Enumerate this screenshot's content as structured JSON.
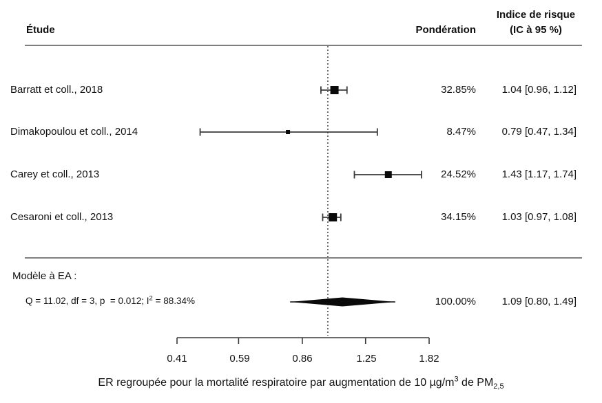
{
  "header": {
    "study_col": "Étude",
    "weight_col": "Pondération",
    "effect_col_line1": "Indice de risque",
    "effect_col_line2": "(IC à 95 %)"
  },
  "chart_data": {
    "type": "forest",
    "x_axis": {
      "scale": "log",
      "ticks": [
        0.41,
        0.59,
        0.86,
        1.25,
        1.82
      ],
      "tick_labels": [
        "0.41",
        "0.59",
        "0.86",
        "1.25",
        "1.82"
      ],
      "reference_line": 1.0
    },
    "studies": [
      {
        "label": "Barratt et coll., 2018",
        "weight_pct": 32.85,
        "weight_label": "32.85%",
        "estimate": 1.04,
        "ci_low": 0.96,
        "ci_high": 1.12,
        "effect_label": "1.04 [0.96, 1.12]"
      },
      {
        "label": "Dimakopoulou et coll., 2014",
        "weight_pct": 8.47,
        "weight_label": "8.47%",
        "estimate": 0.79,
        "ci_low": 0.47,
        "ci_high": 1.34,
        "effect_label": "0.79 [0.47, 1.34]"
      },
      {
        "label": "Carey et coll., 2013",
        "weight_pct": 24.52,
        "weight_label": "24.52%",
        "estimate": 1.43,
        "ci_low": 1.17,
        "ci_high": 1.74,
        "effect_label": "1.43 [1.17, 1.74]"
      },
      {
        "label": "Cesaroni et coll., 2013",
        "weight_pct": 34.15,
        "weight_label": "34.15%",
        "estimate": 1.03,
        "ci_low": 0.97,
        "ci_high": 1.08,
        "effect_label": "1.03 [0.97, 1.08]"
      }
    ],
    "summary": {
      "model_label": "Modèle à EA :",
      "heterogeneity_prefix": "Q = 11.02, df = 3, p  = 0.012; I",
      "heterogeneity_sup": "2",
      "heterogeneity_suffix": " = 88.34%",
      "weight_label": "100.00%",
      "estimate": 1.09,
      "ci_low": 0.8,
      "ci_high": 1.49,
      "effect_label": "1.09 [0.80, 1.49]"
    },
    "caption": {
      "prefix": "ER regroupée pour la mortalité respiratoire par augmentation de 10 µg/m",
      "sup": "3",
      "mid": " de PM",
      "sub": "2,5"
    }
  },
  "colors": {
    "marker": "#0a0a0a",
    "line": "#3a3a3a",
    "ref_line": "#4d4d4d",
    "rule": "#7f7f7f",
    "text": "#111111"
  }
}
